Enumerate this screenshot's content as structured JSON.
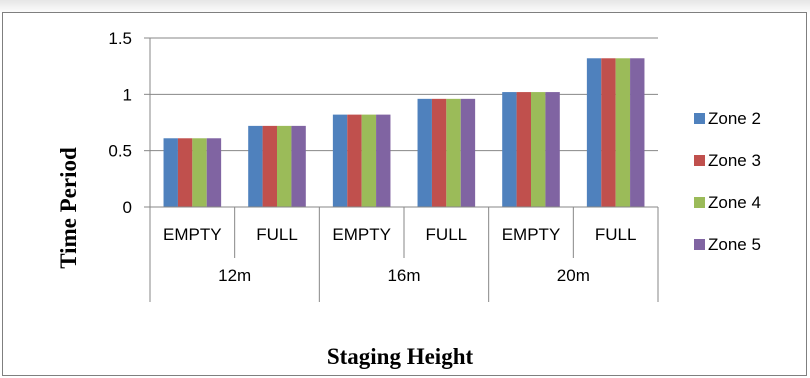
{
  "chart_data": {
    "type": "bar",
    "title": "",
    "xlabel": "Staging Height",
    "ylabel": "Time Period",
    "ylim": [
      0,
      1.5
    ],
    "yticks": [
      "0",
      "0.5",
      "1",
      "1.5"
    ],
    "grid": true,
    "legend_position": "right",
    "groups": [
      {
        "label": "12m",
        "categories": [
          "EMPTY",
          "FULL"
        ]
      },
      {
        "label": "16m",
        "categories": [
          "EMPTY",
          "FULL"
        ]
      },
      {
        "label": "20m",
        "categories": [
          "EMPTY",
          "FULL"
        ]
      }
    ],
    "categories": [
      "EMPTY",
      "FULL",
      "EMPTY",
      "FULL",
      "EMPTY",
      "FULL"
    ],
    "series": [
      {
        "name": "Zone 2",
        "color": "#4f81bd",
        "values": [
          0.61,
          0.72,
          0.82,
          0.96,
          1.02,
          1.32
        ]
      },
      {
        "name": "Zone 3",
        "color": "#c0504d",
        "values": [
          0.61,
          0.72,
          0.82,
          0.96,
          1.02,
          1.32
        ]
      },
      {
        "name": "Zone 4",
        "color": "#9bbb59",
        "values": [
          0.61,
          0.72,
          0.82,
          0.96,
          1.02,
          1.32
        ]
      },
      {
        "name": "Zone 5",
        "color": "#8064a2",
        "values": [
          0.61,
          0.72,
          0.82,
          0.96,
          1.02,
          1.32
        ]
      }
    ]
  }
}
